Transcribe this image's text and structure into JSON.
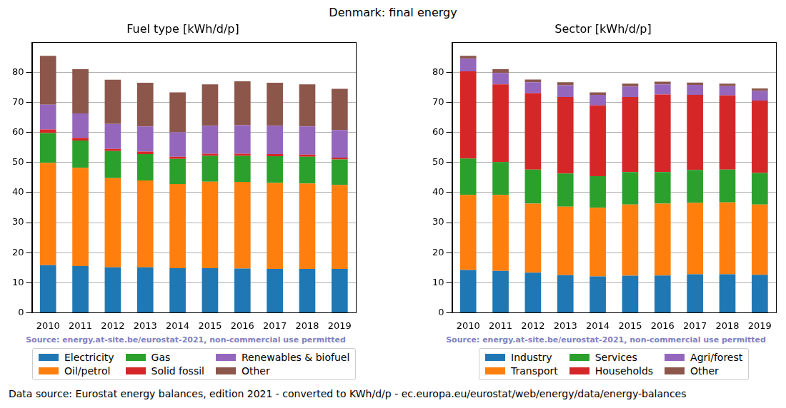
{
  "title": "Denmark: final energy",
  "footer": "Data source: Eurostat energy balances, edition 2021 - converted to KWh/d/p - ec.europa.eu/eurostat/web/energy/data/energy-balances",
  "chart_data": [
    {
      "type": "bar",
      "title": "Fuel type [kWh/d/p]",
      "source": "Source: energy.at-site.be/eurostat-2021, non-commercial use permitted",
      "stacked": true,
      "grid": "y",
      "legend": "bottom",
      "categories": [
        "2010",
        "2011",
        "2012",
        "2013",
        "2014",
        "2015",
        "2016",
        "2017",
        "2018",
        "2019"
      ],
      "ylim": [
        0,
        90
      ],
      "yticks": [
        0,
        10,
        20,
        30,
        40,
        50,
        60,
        70,
        80
      ],
      "series": [
        {
          "name": "Electricity",
          "color": "#1f77b4",
          "values": [
            15.8,
            15.5,
            15.1,
            15.1,
            14.8,
            14.8,
            14.7,
            14.6,
            14.6,
            14.6
          ]
        },
        {
          "name": "Oil/petrol",
          "color": "#ff7f0e",
          "values": [
            34.0,
            32.7,
            29.7,
            28.9,
            28.0,
            28.8,
            28.8,
            28.6,
            28.4,
            27.9
          ]
        },
        {
          "name": "Gas",
          "color": "#2ca02c",
          "values": [
            10.0,
            9.1,
            9.0,
            8.8,
            8.4,
            8.6,
            8.7,
            8.9,
            8.9,
            8.5
          ]
        },
        {
          "name": "Solid fossil",
          "color": "#d62728",
          "values": [
            1.2,
            0.9,
            0.7,
            0.8,
            0.7,
            0.7,
            0.7,
            0.7,
            0.7,
            0.6
          ]
        },
        {
          "name": "Renewables & biofuel",
          "color": "#9467bd",
          "values": [
            8.2,
            8.1,
            8.3,
            8.4,
            8.1,
            9.3,
            9.5,
            9.4,
            9.4,
            9.2
          ]
        },
        {
          "name": "Other",
          "color": "#8c564b",
          "values": [
            16.3,
            14.7,
            14.7,
            14.5,
            13.3,
            13.8,
            14.6,
            14.3,
            14.0,
            13.7
          ]
        }
      ]
    },
    {
      "type": "bar",
      "title": "Sector [kWh/d/p]",
      "source": "Source: energy.at-site.be/eurostat-2021, non-commercial use permitted",
      "stacked": true,
      "grid": "y",
      "legend": "bottom",
      "categories": [
        "2010",
        "2011",
        "2012",
        "2013",
        "2014",
        "2015",
        "2016",
        "2017",
        "2018",
        "2019"
      ],
      "ylim": [
        0,
        90
      ],
      "yticks": [
        0,
        10,
        20,
        30,
        40,
        50,
        60,
        70,
        80
      ],
      "series": [
        {
          "name": "Industry",
          "color": "#1f77b4",
          "values": [
            14.2,
            13.9,
            13.3,
            12.5,
            12.1,
            12.3,
            12.4,
            12.8,
            12.8,
            12.6
          ]
        },
        {
          "name": "Transport",
          "color": "#ff7f0e",
          "values": [
            25.0,
            25.3,
            23.0,
            22.8,
            22.8,
            23.7,
            23.9,
            23.7,
            23.9,
            23.4
          ]
        },
        {
          "name": "Services",
          "color": "#2ca02c",
          "values": [
            12.1,
            10.9,
            11.3,
            11.0,
            10.5,
            10.8,
            10.5,
            11.0,
            10.9,
            10.5
          ]
        },
        {
          "name": "Households",
          "color": "#d62728",
          "values": [
            29.0,
            25.9,
            25.4,
            25.5,
            23.6,
            25.0,
            25.8,
            25.0,
            24.7,
            24.1
          ]
        },
        {
          "name": "Agri/forest",
          "color": "#9467bd",
          "values": [
            4.2,
            3.8,
            3.7,
            3.9,
            3.5,
            3.5,
            3.4,
            3.3,
            3.1,
            3.2
          ]
        },
        {
          "name": "Other",
          "color": "#8c564b",
          "values": [
            1.0,
            1.2,
            0.9,
            1.0,
            0.8,
            0.9,
            0.9,
            0.8,
            0.8,
            0.8
          ]
        }
      ]
    }
  ]
}
